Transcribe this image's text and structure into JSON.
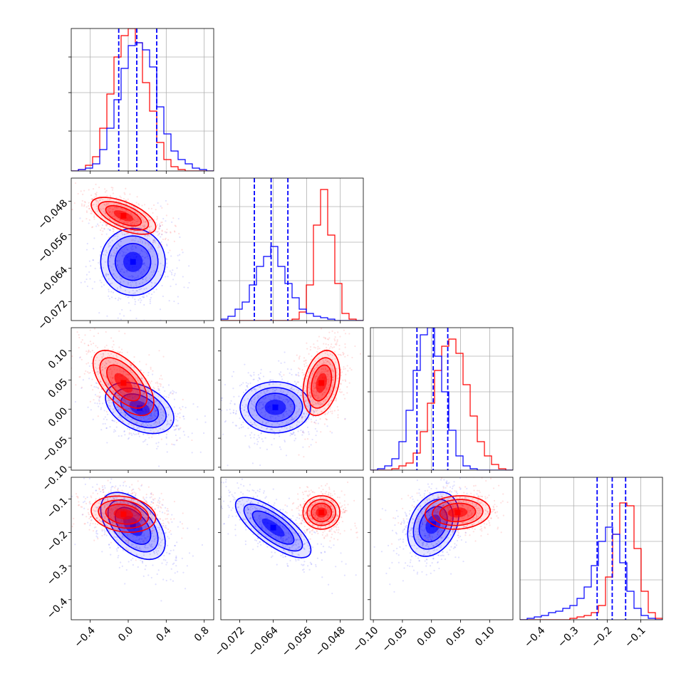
{
  "chart_data": {
    "type": "corner",
    "title": "",
    "series": [
      {
        "name": "",
        "color": "#ff0000"
      },
      {
        "name": "",
        "color": "#0000ff"
      }
    ],
    "grid": true,
    "legend": "none",
    "parameters": [
      {
        "range": [
          -0.6,
          0.9
        ],
        "ticks": [
          "−0.4",
          "0.0",
          "0.4",
          "0.8"
        ],
        "tick_values": [
          -0.4,
          0.0,
          0.4,
          0.8
        ],
        "quantiles_blue": [
          -0.1,
          0.09,
          0.3
        ],
        "hist_red": [
          0,
          0.01,
          0.04,
          0.1,
          0.3,
          0.54,
          0.8,
          0.95,
          1.0,
          0.9,
          0.62,
          0.42,
          0.2,
          0.08,
          0.03,
          0.01,
          0,
          0,
          0,
          0
        ],
        "hist_blue": [
          0,
          0.01,
          0.02,
          0.05,
          0.15,
          0.3,
          0.5,
          0.72,
          0.88,
          0.9,
          0.85,
          0.73,
          0.45,
          0.26,
          0.14,
          0.08,
          0.05,
          0.02,
          0.01,
          0
        ]
      },
      {
        "range": [
          -0.0765,
          -0.0425
        ],
        "ticks": [
          "−0.072",
          "−0.064",
          "−0.056",
          "−0.048"
        ],
        "tick_values": [
          -0.072,
          -0.064,
          -0.056,
          -0.048
        ],
        "quantiles_blue": [
          -0.0685,
          -0.0645,
          -0.0605
        ],
        "hist_red": [
          0,
          0,
          0,
          0,
          0,
          0,
          0,
          0,
          0,
          0,
          0.01,
          0.06,
          0.25,
          0.67,
          0.92,
          0.6,
          0.26,
          0.05,
          0.01,
          0
        ],
        "hist_blue": [
          0.01,
          0.03,
          0.08,
          0.13,
          0.25,
          0.38,
          0.45,
          0.52,
          0.38,
          0.26,
          0.16,
          0.08,
          0.05,
          0.03,
          0.02,
          0.01,
          0,
          0,
          0,
          0
        ]
      },
      {
        "range": [
          -0.105,
          0.14
        ],
        "ticks": [
          "−0.10",
          "−0.05",
          "0.00",
          "0.05",
          "0.10"
        ],
        "tick_values": [
          -0.1,
          -0.05,
          0.0,
          0.05,
          0.1
        ],
        "quantiles_blue": [
          -0.025,
          0.003,
          0.028
        ],
        "hist_red": [
          0,
          0,
          0,
          0.01,
          0.03,
          0.05,
          0.12,
          0.27,
          0.47,
          0.7,
          0.87,
          0.92,
          0.82,
          0.6,
          0.38,
          0.2,
          0.1,
          0.04,
          0.01,
          0
        ],
        "hist_blue": [
          0,
          0.01,
          0.03,
          0.08,
          0.2,
          0.42,
          0.7,
          0.95,
          1.0,
          0.8,
          0.55,
          0.28,
          0.1,
          0.03,
          0.01,
          0,
          0,
          0,
          0,
          0
        ]
      },
      {
        "range": [
          -0.46,
          -0.035
        ],
        "ticks": [
          "−0.4",
          "−0.3",
          "−0.2",
          "−0.1"
        ],
        "tick_values": [
          -0.4,
          -0.3,
          -0.2,
          -0.1
        ],
        "quantiles_blue": [
          -0.23,
          -0.185,
          -0.145
        ],
        "hist_red": [
          0,
          0,
          0,
          0,
          0,
          0,
          0,
          0.01,
          0.02,
          0.03,
          0.05,
          0.1,
          0.3,
          0.6,
          0.82,
          0.8,
          0.5,
          0.2,
          0.05,
          0.01
        ],
        "hist_blue": [
          0,
          0.01,
          0.02,
          0.03,
          0.05,
          0.06,
          0.08,
          0.1,
          0.15,
          0.23,
          0.38,
          0.55,
          0.65,
          0.6,
          0.4,
          0.2,
          0.08,
          0.03,
          0.01,
          0
        ]
      }
    ],
    "pair_ticks_y": {
      "1": [
        "−0.048",
        "−0.056",
        "−0.064",
        "−0.072"
      ],
      "2": [
        "0.10",
        "0.05",
        "0.00",
        "−0.05",
        "−0.10"
      ],
      "3": [
        "−0.1",
        "−0.2",
        "−0.3",
        "−0.4"
      ]
    },
    "pairs": [
      {
        "row": 1,
        "col": 0,
        "red": {
          "mean": [
            -0.05,
            -0.0515
          ],
          "sd": [
            0.17,
            0.0022
          ],
          "rho": -0.6
        },
        "blue": {
          "mean": [
            0.05,
            -0.0625
          ],
          "sd": [
            0.17,
            0.004
          ],
          "rho": 0.0
        }
      },
      {
        "row": 2,
        "col": 0,
        "red": {
          "mean": [
            -0.05,
            0.045
          ],
          "sd": [
            0.16,
            0.028
          ],
          "rho": -0.6
        },
        "blue": {
          "mean": [
            0.12,
            0.002
          ],
          "sd": [
            0.18,
            0.022
          ],
          "rho": -0.4
        }
      },
      {
        "row": 2,
        "col": 1,
        "red": {
          "mean": [
            -0.0525,
            0.045
          ],
          "sd": [
            0.0022,
            0.028
          ],
          "rho": 0.3
        },
        "blue": {
          "mean": [
            -0.0635,
            0.003
          ],
          "sd": [
            0.0042,
            0.022
          ],
          "rho": 0.0
        }
      },
      {
        "row": 3,
        "col": 0,
        "red": {
          "mean": [
            -0.05,
            -0.145
          ],
          "sd": [
            0.17,
            0.027
          ],
          "rho": -0.2
        },
        "blue": {
          "mean": [
            0.05,
            -0.18
          ],
          "sd": [
            0.17,
            0.05
          ],
          "rho": -0.5
        }
      },
      {
        "row": 3,
        "col": 1,
        "red": {
          "mean": [
            -0.0525,
            -0.14
          ],
          "sd": [
            0.0022,
            0.025
          ],
          "rho": 0.0
        },
        "blue": {
          "mean": [
            -0.064,
            -0.185
          ],
          "sd": [
            0.0045,
            0.045
          ],
          "rho": -0.75
        }
      },
      {
        "row": 3,
        "col": 2,
        "red": {
          "mean": [
            0.045,
            -0.14
          ],
          "sd": [
            0.028,
            0.025
          ],
          "rho": 0.1
        },
        "blue": {
          "mean": [
            0.003,
            -0.175
          ],
          "sd": [
            0.022,
            0.048
          ],
          "rho": 0.3
        }
      }
    ]
  }
}
